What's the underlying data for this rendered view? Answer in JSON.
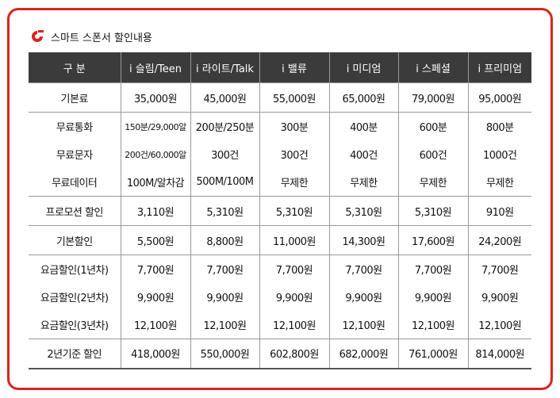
{
  "header": {
    "title": "스마트 스폰서 할인내용"
  },
  "table": {
    "columns": [
      "구 분",
      "i 슬림/Teen",
      "i 라이트/Talk",
      "i 밸류",
      "i 미디엄",
      "i 스페셜",
      "i 프리미엄"
    ],
    "rows": [
      [
        "기본료",
        "35,000원",
        "45,000원",
        "55,000원",
        "65,000원",
        "79,000원",
        "95,000원"
      ],
      [
        "무료통화",
        "150분/29,000알",
        "200분/250분",
        "300분",
        "400분",
        "600분",
        "800분"
      ],
      [
        "무료문자",
        "200건/60,000알",
        "300건",
        "300건",
        "400건",
        "600건",
        "1000건"
      ],
      [
        "무료데이터",
        "100M/알차감",
        "500M/100M",
        "무제한",
        "무제한",
        "무제한",
        "무제한"
      ],
      [
        "프로모션 할인",
        "3,110원",
        "5,310원",
        "5,310원",
        "5,310원",
        "5,310원",
        "910원"
      ],
      [
        "기본할인",
        "5,500원",
        "8,800원",
        "11,000원",
        "14,300원",
        "17,600원",
        "24,200원"
      ],
      [
        "요금할인(1년차)",
        "7,700원",
        "7,700원",
        "7,700원",
        "7,700원",
        "7,700원",
        "7,700원"
      ],
      [
        "요금할인(2년차)",
        "9,900원",
        "9,900원",
        "9,900원",
        "9,900원",
        "9,900원",
        "9,900원"
      ],
      [
        "요금할인(3년차)",
        "12,100원",
        "12,100원",
        "12,100원",
        "12,100원",
        "12,100원",
        "12,100원"
      ],
      [
        "2년기준 할인",
        "418,000원",
        "550,000원",
        "602,800원",
        "682,000원",
        "761,000원",
        "814,000원"
      ]
    ]
  }
}
